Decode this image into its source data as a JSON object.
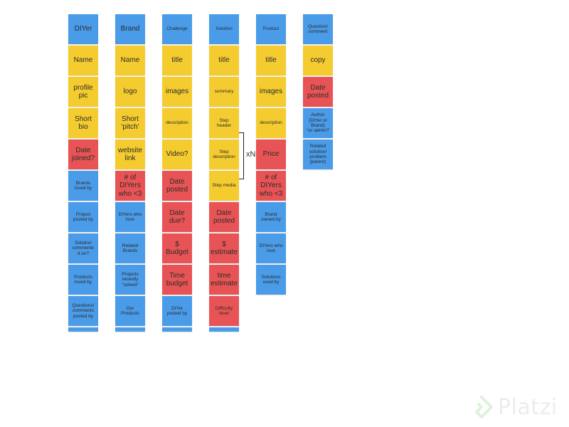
{
  "colors": {
    "blue": "#4a9be8",
    "yellow": "#f5cc2f",
    "red": "#e85455"
  },
  "columns": [
    {
      "key": "diyer",
      "notes": [
        {
          "text": "DIYer",
          "color": "blue",
          "size": "lg"
        },
        {
          "text": "Name",
          "color": "yellow",
          "size": "lg"
        },
        {
          "text": "profile\npic",
          "color": "yellow",
          "size": "lg"
        },
        {
          "text": "Short\nbio",
          "color": "yellow",
          "size": "lg"
        },
        {
          "text": "Date\njoined?",
          "color": "red",
          "size": "lg"
        },
        {
          "text": "Brands\nloved by",
          "color": "blue",
          "size": "sm"
        },
        {
          "text": "Project\nposted by",
          "color": "blue",
          "size": "sm"
        },
        {
          "text": "Solution\ncommente\nd on?",
          "color": "blue",
          "size": "sm"
        },
        {
          "text": "Products\nloved by",
          "color": "blue",
          "size": "sm"
        },
        {
          "text": "Questions/\ncomments\nposted by",
          "color": "blue",
          "size": "sm"
        },
        {
          "text": "",
          "color": "blue",
          "size": "stub"
        }
      ]
    },
    {
      "key": "brand",
      "notes": [
        {
          "text": "Brand",
          "color": "blue",
          "size": "lg"
        },
        {
          "text": "Name",
          "color": "yellow",
          "size": "lg"
        },
        {
          "text": "logo",
          "color": "yellow",
          "size": "lg"
        },
        {
          "text": "Short\n'pitch'",
          "color": "yellow",
          "size": "lg"
        },
        {
          "text": "website\nlink",
          "color": "yellow",
          "size": "lg"
        },
        {
          "text": "# of\nDIYers\nwho <3",
          "color": "red",
          "size": "lg"
        },
        {
          "text": "DIYers who\nlove",
          "color": "blue",
          "size": "sm"
        },
        {
          "text": "Related\nBrands",
          "color": "blue",
          "size": "sm"
        },
        {
          "text": "Projects\nrecently\n\"solved\"",
          "color": "blue",
          "size": "sm"
        },
        {
          "text": "Our\nProducts",
          "color": "blue",
          "size": "sm"
        },
        {
          "text": "",
          "color": "blue",
          "size": "stub"
        }
      ]
    },
    {
      "key": "challenge",
      "notes": [
        {
          "text": "Challenge",
          "color": "blue",
          "size": "sm"
        },
        {
          "text": "title",
          "color": "yellow",
          "size": "lg"
        },
        {
          "text": "images",
          "color": "yellow",
          "size": "lg"
        },
        {
          "text": "description",
          "color": "yellow",
          "size": "sm"
        },
        {
          "text": "Video?",
          "color": "yellow",
          "size": "lg"
        },
        {
          "text": "Date\nposted",
          "color": "red",
          "size": "lg"
        },
        {
          "text": "Date\ndue?",
          "color": "red",
          "size": "lg"
        },
        {
          "text": "$\nBudget",
          "color": "red",
          "size": "lg"
        },
        {
          "text": "Time\nbudget",
          "color": "red",
          "size": "lg"
        },
        {
          "text": "DIYer\nposted by",
          "color": "blue",
          "size": "sm"
        },
        {
          "text": "",
          "color": "blue",
          "size": "stub"
        }
      ]
    },
    {
      "key": "solution",
      "notes": [
        {
          "text": "Solution",
          "color": "blue",
          "size": "sm"
        },
        {
          "text": "title",
          "color": "yellow",
          "size": "lg"
        },
        {
          "text": "summary",
          "color": "yellow",
          "size": "sm"
        },
        {
          "text": "Step\nheader",
          "color": "yellow",
          "size": "sm"
        },
        {
          "text": "Step\ndescription",
          "color": "yellow",
          "size": "sm"
        },
        {
          "text": "Step media",
          "color": "yellow",
          "size": "sm"
        },
        {
          "text": "Date\nposted",
          "color": "red",
          "size": "lg"
        },
        {
          "text": "$\nestimate",
          "color": "red",
          "size": "lg"
        },
        {
          "text": "time\nestimate",
          "color": "red",
          "size": "lg"
        },
        {
          "text": "Difficulty\nlevel",
          "color": "red",
          "size": "sm"
        },
        {
          "text": "",
          "color": "blue",
          "size": "stub"
        }
      ]
    },
    {
      "key": "product",
      "notes": [
        {
          "text": "Product",
          "color": "blue",
          "size": "sm"
        },
        {
          "text": "title",
          "color": "yellow",
          "size": "lg"
        },
        {
          "text": "images",
          "color": "yellow",
          "size": "lg"
        },
        {
          "text": "description",
          "color": "yellow",
          "size": "sm"
        },
        {
          "text": "Price",
          "color": "red",
          "size": "lg"
        },
        {
          "text": "# of\nDIYers\nwho <3",
          "color": "red",
          "size": "lg"
        },
        {
          "text": "Brand\nowned by",
          "color": "blue",
          "size": "sm"
        },
        {
          "text": "DIYers who\nlove",
          "color": "blue",
          "size": "sm"
        },
        {
          "text": "Solutions\nused by",
          "color": "blue",
          "size": "sm"
        }
      ]
    },
    {
      "key": "question",
      "notes": [
        {
          "text": "Question/\ncomment",
          "color": "blue",
          "size": "sm"
        },
        {
          "text": "copy",
          "color": "yellow",
          "size": "lg"
        },
        {
          "text": "Date\nposted",
          "color": "red",
          "size": "lg"
        },
        {
          "text": "Author\n(DIYer or\nBrand)\n*or admin?",
          "color": "blue",
          "size": "sm"
        },
        {
          "text": "Related\nsolution/\nproblem\n(parent)",
          "color": "blue",
          "size": "sm"
        }
      ]
    }
  ],
  "repeat_marker": "xN",
  "watermark": {
    "text": "Platzi",
    "icon": "platzi-logo-icon"
  }
}
